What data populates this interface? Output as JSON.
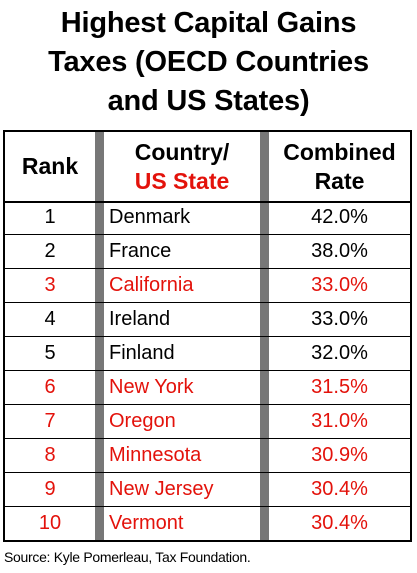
{
  "title": {
    "line1": "Highest Capital Gains",
    "line2": "Taxes (OECD Countries",
    "line3": "and US States)"
  },
  "headers": {
    "rank": "Rank",
    "country_line1": "Country/",
    "country_line2": "US State",
    "rate_line1": "Combined",
    "rate_line2": "Rate"
  },
  "colors": {
    "country_text": "#000000",
    "us_state_text": "#e3120b",
    "separator": "#777777"
  },
  "source": "Source: Kyle Pomerleau, Tax Foundation.",
  "chart_data": {
    "type": "table",
    "columns": [
      "Rank",
      "Country/ US State",
      "Combined Rate"
    ],
    "rows": [
      {
        "rank": "1",
        "name": "Denmark",
        "rate": "42.0%",
        "us_state": false
      },
      {
        "rank": "2",
        "name": "France",
        "rate": "38.0%",
        "us_state": false
      },
      {
        "rank": "3",
        "name": "California",
        "rate": "33.0%",
        "us_state": true
      },
      {
        "rank": "4",
        "name": "Ireland",
        "rate": "33.0%",
        "us_state": false
      },
      {
        "rank": "5",
        "name": "Finland",
        "rate": "32.0%",
        "us_state": false
      },
      {
        "rank": "6",
        "name": "New York",
        "rate": "31.5%",
        "us_state": true
      },
      {
        "rank": "7",
        "name": "Oregon",
        "rate": "31.0%",
        "us_state": true
      },
      {
        "rank": "8",
        "name": "Minnesota",
        "rate": "30.9%",
        "us_state": true
      },
      {
        "rank": "9",
        "name": "New Jersey",
        "rate": "30.4%",
        "us_state": true
      },
      {
        "rank": "10",
        "name": "Vermont",
        "rate": "30.4%",
        "us_state": true
      }
    ]
  }
}
